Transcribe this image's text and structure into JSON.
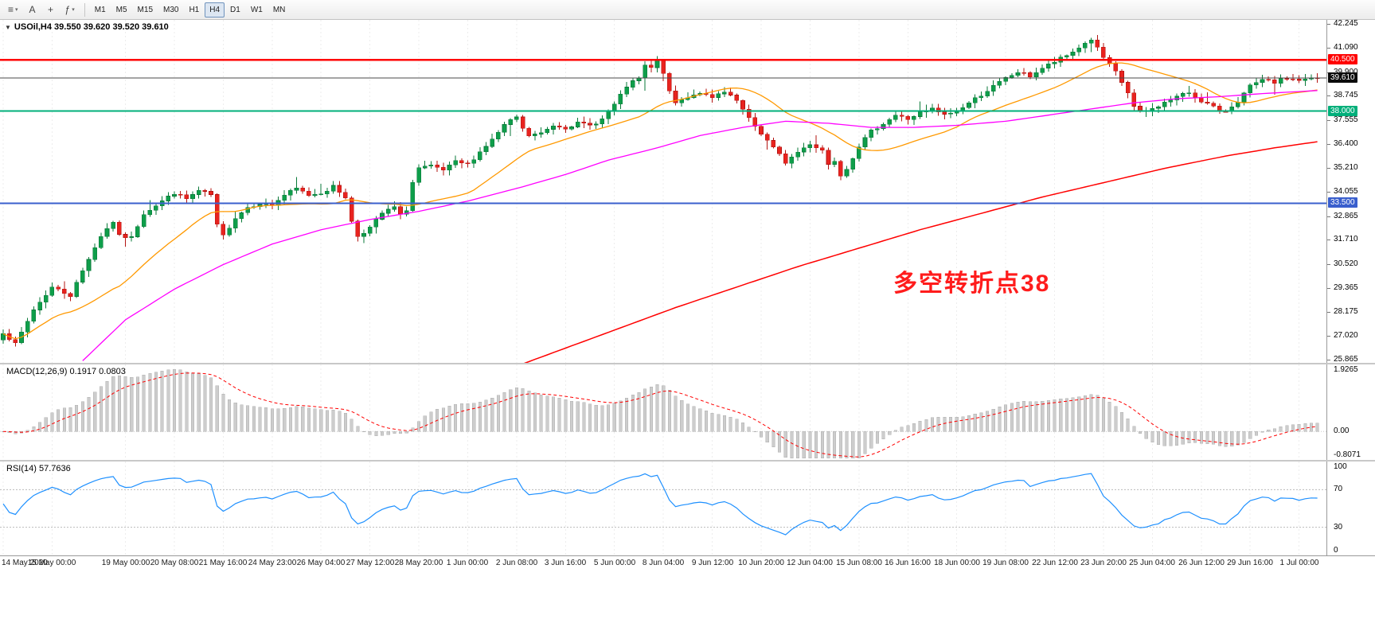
{
  "toolbar": {
    "icons": [
      {
        "name": "charts-list-icon",
        "glyph": "≡",
        "dropdown": true
      },
      {
        "name": "text-tool-icon",
        "glyph": "A",
        "dropdown": false
      },
      {
        "name": "crosshair-icon",
        "glyph": "+",
        "dropdown": false
      },
      {
        "name": "indicators-icon",
        "glyph": "ƒ",
        "dropdown": true
      }
    ],
    "timeframes": [
      "M1",
      "M5",
      "M15",
      "M30",
      "H1",
      "H4",
      "D1",
      "W1",
      "MN"
    ],
    "selected_timeframe": "H4"
  },
  "chart": {
    "symbol_line": "USOil,H4 39.550 39.620 39.520 39.610",
    "annotation": "多空转折点38"
  },
  "macd_panel": {
    "label": "MACD(12,26,9) 0.1917 0.0803",
    "params": [
      12,
      26,
      9
    ],
    "value": 0.1917,
    "signal_value": 0.0803,
    "axis": [
      {
        "v": 1.9265,
        "t": "1.9265"
      },
      {
        "v": 0,
        "t": "0.00"
      },
      {
        "v": -0.8071,
        "t": "-0.8071"
      }
    ],
    "range": [
      -0.85,
      2.0
    ],
    "histogram_color": "#cdcdcd",
    "histogram_border": "#b0b0b0",
    "signal_color": "#FF0000"
  },
  "rsi_panel": {
    "label": "RSI(14) 57.7636",
    "period": 14,
    "value": 57.7636,
    "axis": [
      {
        "v": 100,
        "t": "100"
      },
      {
        "v": 70,
        "t": "70"
      },
      {
        "v": 30,
        "t": "30"
      },
      {
        "v": 0,
        "t": "0"
      }
    ],
    "levels": [
      70,
      30
    ],
    "range": [
      0,
      100
    ],
    "line_color": "#1E90FF",
    "level_color": "#b9b9b9"
  },
  "chart_data": {
    "type": "candlestick",
    "symbol": "USOil",
    "timeframe": "H4",
    "bar_count": 216,
    "visible_price_range": [
      25.7,
      42.45
    ],
    "y_ticks": [
      {
        "v": 42.245,
        "t": "42.245"
      },
      {
        "v": 41.09,
        "t": "41.090"
      },
      {
        "v": 39.9,
        "t": "39.900"
      },
      {
        "v": 38.745,
        "t": "38.745"
      },
      {
        "v": 37.555,
        "t": "37.555"
      },
      {
        "v": 36.4,
        "t": "36.400"
      },
      {
        "v": 35.21,
        "t": "35.210"
      },
      {
        "v": 34.055,
        "t": "34.055"
      },
      {
        "v": 32.865,
        "t": "32.865"
      },
      {
        "v": 31.71,
        "t": "31.710"
      },
      {
        "v": 30.52,
        "t": "30.520"
      },
      {
        "v": 29.365,
        "t": "29.365"
      },
      {
        "v": 28.175,
        "t": "28.175"
      },
      {
        "v": 27.02,
        "t": "27.020"
      },
      {
        "v": 25.865,
        "t": "25.865"
      }
    ],
    "price_levels": [
      {
        "name": "resistance-line",
        "price": 40.5,
        "label": "40.500",
        "color": "#FF0000",
        "width": 2.6
      },
      {
        "name": "bid-line",
        "price": 39.61,
        "label": "39.610",
        "color": "#4a4a4a",
        "label_bg": "#0c0c0c",
        "width": 1
      },
      {
        "name": "pivot-line",
        "price": 38.0,
        "label": "38.000",
        "color": "#00AF7A",
        "width": 2
      },
      {
        "name": "support-line",
        "price": 33.5,
        "label": "33.500",
        "color": "#3A5FCD",
        "width": 2
      }
    ],
    "candle_colors": {
      "bull": "#0E9E4A",
      "bull_border": "#0A7A39",
      "bear": "#E8231F",
      "bear_border": "#B31412"
    },
    "close_path": [
      [
        0,
        27.2
      ],
      [
        2,
        26.6
      ],
      [
        5,
        28.3
      ],
      [
        8,
        29.4
      ],
      [
        11,
        29.0
      ],
      [
        14,
        30.8
      ],
      [
        16,
        31.9
      ],
      [
        18,
        32.6
      ],
      [
        19,
        31.9
      ],
      [
        21,
        31.8
      ],
      [
        23,
        33.0
      ],
      [
        26,
        33.6
      ],
      [
        28,
        34.0
      ],
      [
        30,
        33.7
      ],
      [
        32,
        34.1
      ],
      [
        34,
        33.9
      ],
      [
        35,
        32.4
      ],
      [
        36,
        31.9
      ],
      [
        38,
        32.8
      ],
      [
        40,
        33.3
      ],
      [
        42,
        33.5
      ],
      [
        44,
        33.4
      ],
      [
        46,
        33.9
      ],
      [
        48,
        34.2
      ],
      [
        50,
        33.9
      ],
      [
        52,
        34.0
      ],
      [
        54,
        34.3
      ],
      [
        56,
        33.8
      ],
      [
        57,
        32.6
      ],
      [
        58,
        31.9
      ],
      [
        60,
        32.3
      ],
      [
        62,
        33.0
      ],
      [
        64,
        33.3
      ],
      [
        65,
        32.9
      ],
      [
        66,
        33.2
      ],
      [
        67,
        34.5
      ],
      [
        68,
        35.2
      ],
      [
        70,
        35.3
      ],
      [
        72,
        35.1
      ],
      [
        74,
        35.5
      ],
      [
        76,
        35.4
      ],
      [
        78,
        36.0
      ],
      [
        80,
        36.6
      ],
      [
        82,
        37.3
      ],
      [
        84,
        37.7
      ],
      [
        85,
        37.1
      ],
      [
        86,
        36.8
      ],
      [
        88,
        36.9
      ],
      [
        90,
        37.3
      ],
      [
        92,
        37.2
      ],
      [
        94,
        37.4
      ],
      [
        96,
        37.3
      ],
      [
        98,
        37.6
      ],
      [
        100,
        38.3
      ],
      [
        102,
        39.2
      ],
      [
        104,
        39.6
      ],
      [
        105,
        40.2
      ],
      [
        106,
        40.1
      ],
      [
        107,
        40.4
      ],
      [
        108,
        39.9
      ],
      [
        109,
        38.9
      ],
      [
        110,
        38.4
      ],
      [
        112,
        38.7
      ],
      [
        114,
        38.9
      ],
      [
        116,
        38.6
      ],
      [
        117,
        38.8
      ],
      [
        118,
        38.9
      ],
      [
        120,
        38.5
      ],
      [
        122,
        37.6
      ],
      [
        124,
        36.9
      ],
      [
        126,
        36.2
      ],
      [
        128,
        35.5
      ],
      [
        130,
        36.0
      ],
      [
        132,
        36.4
      ],
      [
        134,
        36.1
      ],
      [
        135,
        35.4
      ],
      [
        136,
        35.6
      ],
      [
        137,
        34.9
      ],
      [
        138,
        35.2
      ],
      [
        140,
        36.3
      ],
      [
        142,
        37.0
      ],
      [
        144,
        37.4
      ],
      [
        146,
        37.8
      ],
      [
        148,
        37.6
      ],
      [
        150,
        37.9
      ],
      [
        152,
        38.1
      ],
      [
        154,
        37.8
      ],
      [
        156,
        38.0
      ],
      [
        158,
        38.4
      ],
      [
        160,
        38.8
      ],
      [
        162,
        39.2
      ],
      [
        164,
        39.6
      ],
      [
        166,
        39.9
      ],
      [
        168,
        39.7
      ],
      [
        170,
        40.1
      ],
      [
        172,
        40.4
      ],
      [
        174,
        40.7
      ],
      [
        176,
        41.1
      ],
      [
        178,
        41.5
      ],
      [
        180,
        40.6
      ],
      [
        182,
        39.9
      ],
      [
        184,
        38.9
      ],
      [
        185,
        38.2
      ],
      [
        186,
        37.9
      ],
      [
        188,
        38.1
      ],
      [
        190,
        38.4
      ],
      [
        192,
        38.7
      ],
      [
        194,
        38.9
      ],
      [
        196,
        38.5
      ],
      [
        198,
        38.2
      ],
      [
        199,
        37.9
      ],
      [
        200,
        38.0
      ],
      [
        202,
        38.5
      ],
      [
        204,
        39.2
      ],
      [
        206,
        39.5
      ],
      [
        208,
        39.4
      ],
      [
        210,
        39.6
      ],
      [
        212,
        39.5
      ],
      [
        215,
        39.61
      ]
    ],
    "ma_fast": {
      "period": 20,
      "color": "#FF9900"
    },
    "ma_mid": {
      "color": "#FF00FF",
      "path": [
        [
          13,
          25.8
        ],
        [
          20,
          27.8
        ],
        [
          28,
          29.3
        ],
        [
          36,
          30.5
        ],
        [
          44,
          31.5
        ],
        [
          52,
          32.2
        ],
        [
          60,
          32.7
        ],
        [
          68,
          33.1
        ],
        [
          76,
          33.6
        ],
        [
          85,
          34.3
        ],
        [
          92,
          34.9
        ],
        [
          99,
          35.6
        ],
        [
          107,
          36.2
        ],
        [
          114,
          36.8
        ],
        [
          121,
          37.2
        ],
        [
          128,
          37.5
        ],
        [
          135,
          37.4
        ],
        [
          142,
          37.2
        ],
        [
          149,
          37.2
        ],
        [
          156,
          37.3
        ],
        [
          164,
          37.5
        ],
        [
          171,
          37.8
        ],
        [
          178,
          38.1
        ],
        [
          185,
          38.4
        ],
        [
          192,
          38.6
        ],
        [
          199,
          38.7
        ],
        [
          206,
          38.85
        ],
        [
          215,
          39.0
        ]
      ]
    },
    "ma_slow": {
      "color": "#FF0000",
      "path": [
        [
          80,
          25.1
        ],
        [
          90,
          26.2
        ],
        [
          100,
          27.3
        ],
        [
          110,
          28.4
        ],
        [
          120,
          29.4
        ],
        [
          130,
          30.4
        ],
        [
          140,
          31.3
        ],
        [
          150,
          32.2
        ],
        [
          160,
          33.0
        ],
        [
          170,
          33.8
        ],
        [
          180,
          34.5
        ],
        [
          190,
          35.2
        ],
        [
          200,
          35.8
        ],
        [
          208,
          36.2
        ],
        [
          215,
          36.5
        ]
      ]
    },
    "time_labels": [
      {
        "bar": 0,
        "t": "14 May 2020"
      },
      {
        "bar": 8,
        "t": "15 May 00:00"
      },
      {
        "bar": 20,
        "t": "19 May 00:00"
      },
      {
        "bar": 28,
        "t": "20 May 08:00"
      },
      {
        "bar": 36,
        "t": "21 May 16:00"
      },
      {
        "bar": 44,
        "t": "24 May 23:00"
      },
      {
        "bar": 52,
        "t": "26 May 04:00"
      },
      {
        "bar": 60,
        "t": "27 May 12:00"
      },
      {
        "bar": 68,
        "t": "28 May 20:00"
      },
      {
        "bar": 76,
        "t": "1 Jun 00:00"
      },
      {
        "bar": 84,
        "t": "2 Jun 08:00"
      },
      {
        "bar": 92,
        "t": "3 Jun 16:00"
      },
      {
        "bar": 100,
        "t": "5 Jun 00:00"
      },
      {
        "bar": 108,
        "t": "8 Jun 04:00"
      },
      {
        "bar": 116,
        "t": "9 Jun 12:00"
      },
      {
        "bar": 124,
        "t": "10 Jun 20:00"
      },
      {
        "bar": 132,
        "t": "12 Jun 04:00"
      },
      {
        "bar": 140,
        "t": "15 Jun 08:00"
      },
      {
        "bar": 148,
        "t": "16 Jun 16:00"
      },
      {
        "bar": 156,
        "t": "18 Jun 00:00"
      },
      {
        "bar": 164,
        "t": "19 Jun 08:00"
      },
      {
        "bar": 172,
        "t": "22 Jun 12:00"
      },
      {
        "bar": 180,
        "t": "23 Jun 20:00"
      },
      {
        "bar": 188,
        "t": "25 Jun 04:00"
      },
      {
        "bar": 196,
        "t": "26 Jun 12:00"
      },
      {
        "bar": 204,
        "t": "29 Jun 16:00"
      },
      {
        "bar": 212,
        "t": "1 Jul 00:00"
      }
    ]
  }
}
